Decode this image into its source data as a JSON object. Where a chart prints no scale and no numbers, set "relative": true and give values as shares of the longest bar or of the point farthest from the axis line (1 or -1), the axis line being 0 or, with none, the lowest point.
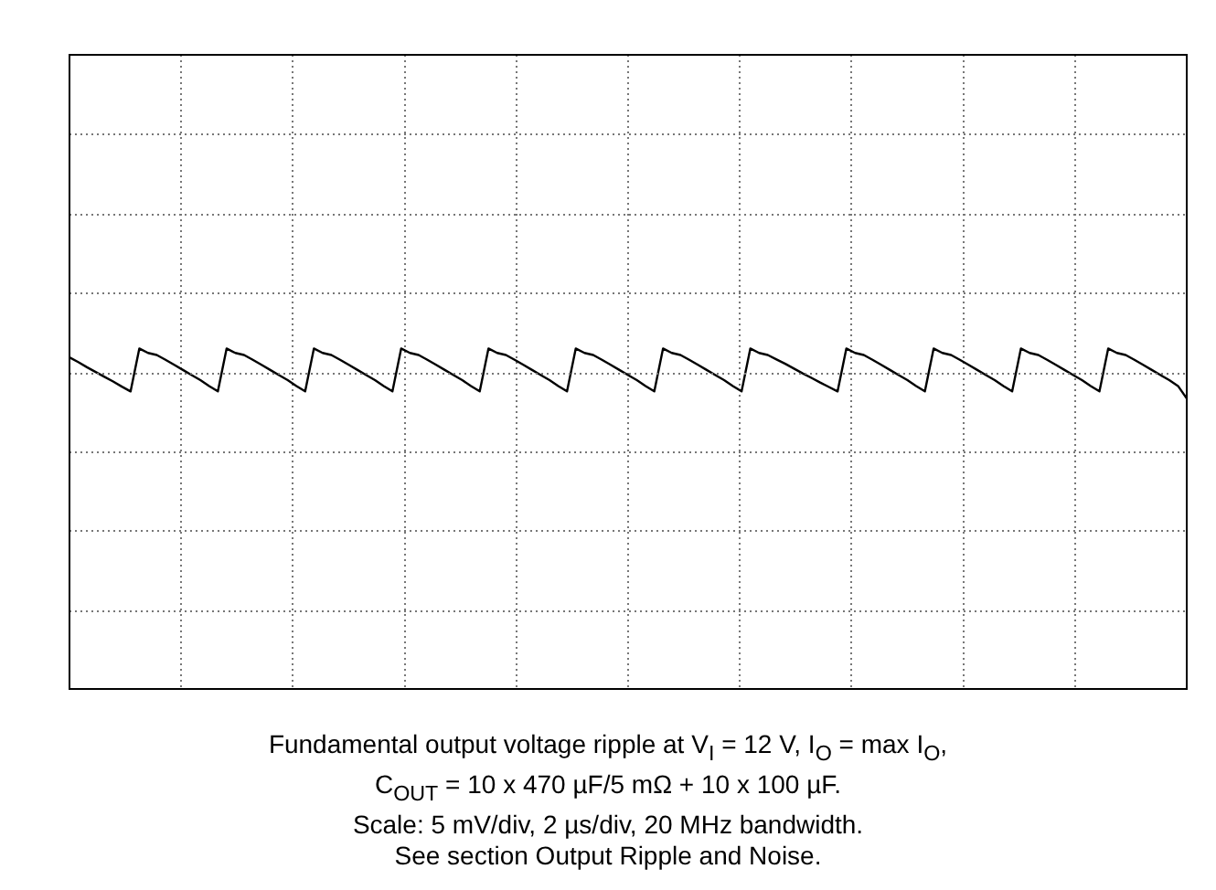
{
  "chart_data": {
    "type": "line",
    "relative": true,
    "grid": true,
    "tick_labels": false,
    "color": "#000000",
    "categories": [
      null,
      null,
      null,
      null,
      null,
      null,
      null,
      null,
      null,
      null,
      null,
      null,
      null,
      null,
      null,
      null,
      null,
      null,
      null,
      null,
      null,
      null,
      null,
      null,
      null,
      null,
      null,
      null,
      null,
      null,
      null,
      null,
      null,
      null,
      null,
      null,
      null,
      null,
      null,
      null,
      null,
      null,
      null,
      null,
      null,
      null,
      null,
      null,
      null,
      null,
      null,
      null,
      null,
      null,
      null,
      null,
      null,
      null,
      null,
      null,
      null,
      null,
      null,
      null,
      null,
      null,
      null,
      null,
      null,
      null,
      null,
      null,
      null,
      null,
      null,
      null,
      null,
      null,
      null,
      null,
      null,
      null,
      null,
      null,
      null,
      null,
      null,
      null,
      null,
      null,
      null,
      null,
      null,
      null,
      null,
      null,
      null,
      null,
      null,
      null,
      null,
      null,
      null,
      null,
      null,
      null,
      null,
      null,
      null,
      null,
      null,
      null,
      null,
      null,
      null,
      null,
      null,
      null,
      null,
      null,
      null,
      null,
      null,
      null,
      null,
      null,
      null,
      null,
      null
    ],
    "values": [
      0.974,
      0.96,
      0.945,
      0.931,
      0.917,
      0.903,
      0.888,
      0.874,
      1,
      0.987,
      0.981,
      0.967,
      0.952,
      0.937,
      0.922,
      0.907,
      0.89,
      0.874,
      1,
      0.987,
      0.981,
      0.967,
      0.952,
      0.937,
      0.922,
      0.907,
      0.89,
      0.874,
      1,
      0.987,
      0.981,
      0.967,
      0.952,
      0.937,
      0.922,
      0.907,
      0.89,
      0.874,
      1,
      0.987,
      0.981,
      0.967,
      0.952,
      0.937,
      0.922,
      0.907,
      0.89,
      0.874,
      1,
      0.987,
      0.981,
      0.967,
      0.952,
      0.937,
      0.922,
      0.907,
      0.89,
      0.874,
      1,
      0.987,
      0.981,
      0.967,
      0.952,
      0.937,
      0.922,
      0.907,
      0.89,
      0.874,
      1,
      0.987,
      0.981,
      0.967,
      0.952,
      0.937,
      0.922,
      0.907,
      0.89,
      0.874,
      1,
      0.987,
      0.981,
      0.968,
      0.955,
      0.941,
      0.927,
      0.914,
      0.9,
      0.887,
      0.874,
      1,
      0.987,
      0.981,
      0.967,
      0.952,
      0.937,
      0.922,
      0.907,
      0.89,
      0.874,
      1,
      0.987,
      0.981,
      0.967,
      0.952,
      0.937,
      0.922,
      0.907,
      0.89,
      0.874,
      1,
      0.987,
      0.981,
      0.967,
      0.952,
      0.937,
      0.922,
      0.907,
      0.89,
      0.874,
      1,
      0.987,
      0.981,
      0.967,
      0.952,
      0.937,
      0.922,
      0.907,
      0.89,
      0.853
    ],
    "annotations": [
      "Fundamental output voltage ripple at V$_{I}$ = 12 V, I$_{O}$ = max I$_{O}$,",
      "C$_{OUT}$ = 10 x 470 µF/5 mΩ + 10 x 100 µF.",
      "Scale: 5 mV/div, 2 µs/div, 20 MHz bandwidth.",
      "See section Output Ripple and Noise."
    ]
  }
}
